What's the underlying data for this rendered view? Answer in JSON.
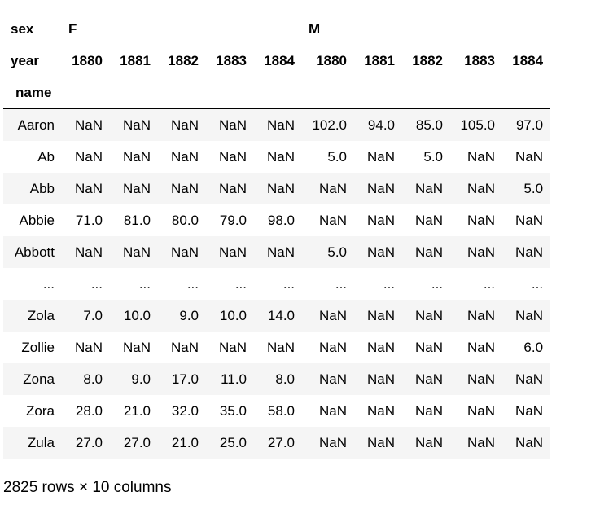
{
  "table": {
    "header_rows": [
      {
        "label": "sex",
        "groups": [
          {
            "text": "F",
            "span": 5
          },
          {
            "text": "M",
            "span": 5
          }
        ]
      },
      {
        "label": "year",
        "columns": [
          "1880",
          "1881",
          "1882",
          "1883",
          "1884",
          "1880",
          "1881",
          "1882",
          "1883",
          "1884"
        ]
      }
    ],
    "index_name": "name",
    "rows": [
      [
        "Aaron",
        "NaN",
        "NaN",
        "NaN",
        "NaN",
        "NaN",
        "102.0",
        "94.0",
        "85.0",
        "105.0",
        "97.0"
      ],
      [
        "Ab",
        "NaN",
        "NaN",
        "NaN",
        "NaN",
        "NaN",
        "5.0",
        "NaN",
        "5.0",
        "NaN",
        "NaN"
      ],
      [
        "Abb",
        "NaN",
        "NaN",
        "NaN",
        "NaN",
        "NaN",
        "NaN",
        "NaN",
        "NaN",
        "NaN",
        "5.0"
      ],
      [
        "Abbie",
        "71.0",
        "81.0",
        "80.0",
        "79.0",
        "98.0",
        "NaN",
        "NaN",
        "NaN",
        "NaN",
        "NaN"
      ],
      [
        "Abbott",
        "NaN",
        "NaN",
        "NaN",
        "NaN",
        "NaN",
        "5.0",
        "NaN",
        "NaN",
        "NaN",
        "NaN"
      ],
      [
        "...",
        "...",
        "...",
        "...",
        "...",
        "...",
        "...",
        "...",
        "...",
        "...",
        "..."
      ],
      [
        "Zola",
        "7.0",
        "10.0",
        "9.0",
        "10.0",
        "14.0",
        "NaN",
        "NaN",
        "NaN",
        "NaN",
        "NaN"
      ],
      [
        "Zollie",
        "NaN",
        "NaN",
        "NaN",
        "NaN",
        "NaN",
        "NaN",
        "NaN",
        "NaN",
        "NaN",
        "6.0"
      ],
      [
        "Zona",
        "8.0",
        "9.0",
        "17.0",
        "11.0",
        "8.0",
        "NaN",
        "NaN",
        "NaN",
        "NaN",
        "NaN"
      ],
      [
        "Zora",
        "28.0",
        "21.0",
        "32.0",
        "35.0",
        "58.0",
        "NaN",
        "NaN",
        "NaN",
        "NaN",
        "NaN"
      ],
      [
        "Zula",
        "27.0",
        "27.0",
        "21.0",
        "25.0",
        "27.0",
        "NaN",
        "NaN",
        "NaN",
        "NaN",
        "NaN"
      ]
    ],
    "footer": "2825 rows × 10 columns"
  }
}
